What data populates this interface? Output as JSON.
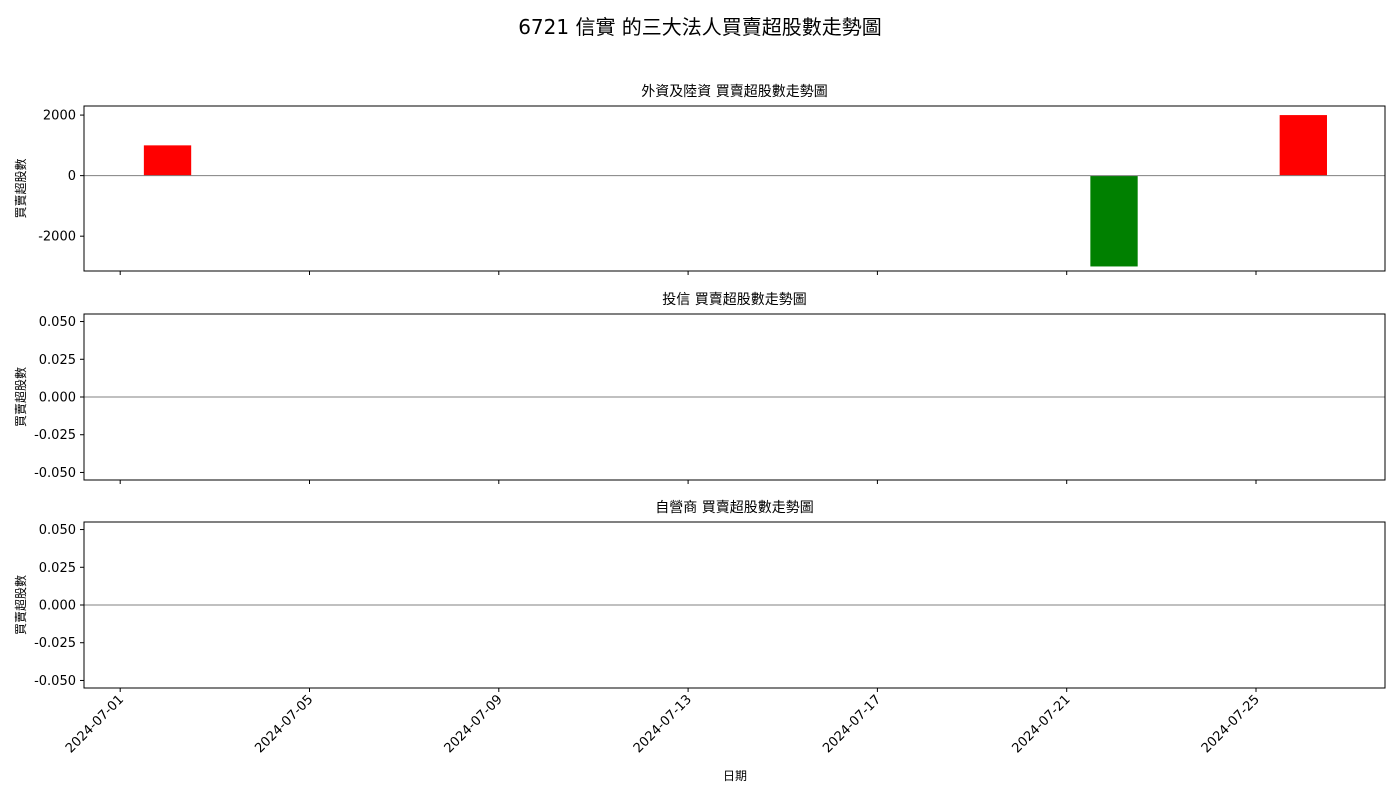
{
  "title": "6721 信實 的三大法人買賣超股數走勢圖",
  "xlabel": "日期",
  "x_ticks": [
    "2024-07-01",
    "2024-07-05",
    "2024-07-09",
    "2024-07-13",
    "2024-07-17",
    "2024-07-21",
    "2024-07-25"
  ],
  "colors": {
    "positive": "#ff0000",
    "negative": "#008000",
    "zero_line": "#808080"
  },
  "chart_data": [
    {
      "type": "bar",
      "title": "外資及陸資 買賣超股數走勢圖",
      "ylabel": "買賣超股數",
      "ylim": [
        -3150,
        2300
      ],
      "yticks": [
        2000,
        0,
        -2000
      ],
      "ytick_labels": [
        "2000",
        "0",
        "-2000"
      ],
      "x": [
        "2024-07-02",
        "2024-07-22",
        "2024-07-26"
      ],
      "values": [
        1000,
        -3000,
        2000
      ]
    },
    {
      "type": "bar",
      "title": "投信 買賣超股數走勢圖",
      "ylabel": "買賣超股數",
      "ylim": [
        -0.055,
        0.055
      ],
      "yticks": [
        0.05,
        0.025,
        0,
        -0.025,
        -0.05
      ],
      "ytick_labels": [
        "0.050",
        "0.025",
        "0.000",
        "-0.025",
        "-0.050"
      ],
      "x": [],
      "values": []
    },
    {
      "type": "bar",
      "title": "自營商 買賣超股數走勢圖",
      "ylabel": "買賣超股數",
      "ylim": [
        -0.055,
        0.055
      ],
      "yticks": [
        0.05,
        0.025,
        0,
        -0.025,
        -0.05
      ],
      "ytick_labels": [
        "0.050",
        "0.025",
        "0.000",
        "-0.025",
        "-0.050"
      ],
      "x": [],
      "values": []
    }
  ]
}
